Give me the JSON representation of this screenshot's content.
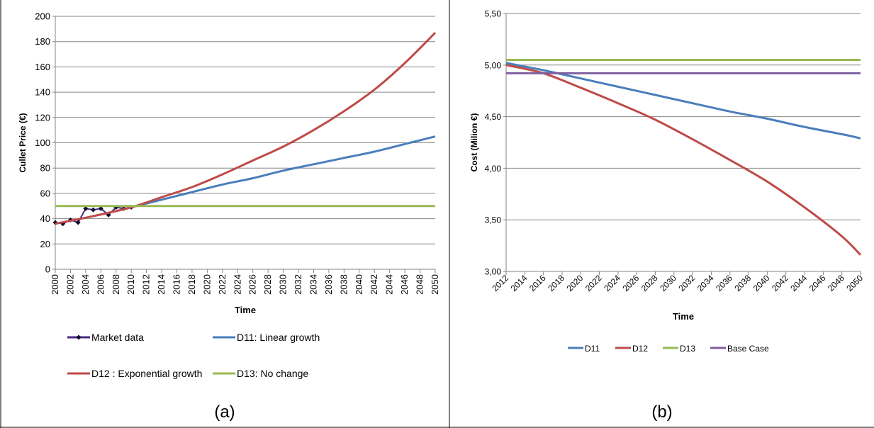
{
  "chart_data": [
    {
      "type": "line",
      "caption": "(a)",
      "xlabel": "Time",
      "ylabel": "Cullet Price (€)",
      "ylim": [
        0,
        200
      ],
      "xlim": [
        2000,
        2050
      ],
      "y_ticks": [
        "0",
        "20",
        "40",
        "60",
        "80",
        "100",
        "120",
        "140",
        "160",
        "180",
        "200"
      ],
      "x_ticks": [
        "2000",
        "2002",
        "2004",
        "2006",
        "2008",
        "2010",
        "2012",
        "2014",
        "2016",
        "2018",
        "2020",
        "2022",
        "2024",
        "2026",
        "2028",
        "2030",
        "2032",
        "2034",
        "2036",
        "2038",
        "2040",
        "2042",
        "2044",
        "2046",
        "2048",
        "2050"
      ],
      "grid": "horizontal",
      "legend_position": "bottom",
      "series": [
        {
          "name": "Market data",
          "color": "#4b2a84",
          "marker": "diamond",
          "x": [
            2000,
            2001,
            2002,
            2003,
            2004,
            2005,
            2006,
            2007,
            2008,
            2009,
            2010
          ],
          "y": [
            37,
            36,
            39,
            37,
            48,
            47,
            48,
            43,
            49,
            48,
            49
          ]
        },
        {
          "name": "D11: Linear growth",
          "color": "#4a7ebb",
          "x": [
            2010,
            2014,
            2018,
            2022,
            2026,
            2030,
            2034,
            2038,
            2042,
            2046,
            2050
          ],
          "y": [
            49,
            55,
            61,
            67,
            72,
            78,
            83,
            88,
            93,
            99,
            105
          ]
        },
        {
          "name": "D12 : Exponential growth",
          "color": "#be4b48",
          "x": [
            2000,
            2005,
            2010,
            2014,
            2018,
            2022,
            2026,
            2030,
            2034,
            2038,
            2042,
            2046,
            2050
          ],
          "y": [
            36,
            42,
            49,
            57,
            65,
            75,
            86,
            97,
            110,
            125,
            142,
            163,
            187
          ]
        },
        {
          "name": "D13: No change",
          "color": "#98b954",
          "x": [
            2000,
            2050
          ],
          "y": [
            50,
            50
          ]
        }
      ]
    },
    {
      "type": "line",
      "caption": "(b)",
      "xlabel": "Time",
      "ylabel": "Cost (Milion €)",
      "ylim": [
        3.0,
        5.5
      ],
      "xlim": [
        2012,
        2050
      ],
      "y_ticks": [
        "3,00",
        "3,50",
        "4,00",
        "4,50",
        "5,00",
        "5,50"
      ],
      "x_ticks": [
        "2012",
        "2014",
        "2016",
        "2018",
        "2020",
        "2022",
        "2024",
        "2026",
        "2028",
        "2030",
        "2032",
        "2034",
        "2036",
        "2038",
        "2040",
        "2042",
        "2044",
        "2046",
        "2048",
        "2050"
      ],
      "grid": "horizontal",
      "legend_position": "bottom",
      "series": [
        {
          "name": "D11",
          "color": "#4a7ebb",
          "x": [
            2012,
            2016,
            2020,
            2024,
            2028,
            2032,
            2036,
            2040,
            2044,
            2048,
            2050
          ],
          "y": [
            5.02,
            4.95,
            4.87,
            4.79,
            4.71,
            4.63,
            4.55,
            4.48,
            4.4,
            4.33,
            4.29
          ]
        },
        {
          "name": "D12",
          "color": "#be4b48",
          "x": [
            2012,
            2016,
            2020,
            2024,
            2028,
            2032,
            2036,
            2040,
            2044,
            2048,
            2050
          ],
          "y": [
            5.0,
            4.92,
            4.78,
            4.63,
            4.47,
            4.28,
            4.08,
            3.87,
            3.62,
            3.34,
            3.16
          ]
        },
        {
          "name": "D13",
          "color": "#98b954",
          "x": [
            2012,
            2050
          ],
          "y": [
            5.05,
            5.05
          ]
        },
        {
          "name": "Base Case",
          "color": "#7d60a0",
          "x": [
            2012,
            2050
          ],
          "y": [
            4.92,
            4.92
          ]
        }
      ]
    }
  ]
}
